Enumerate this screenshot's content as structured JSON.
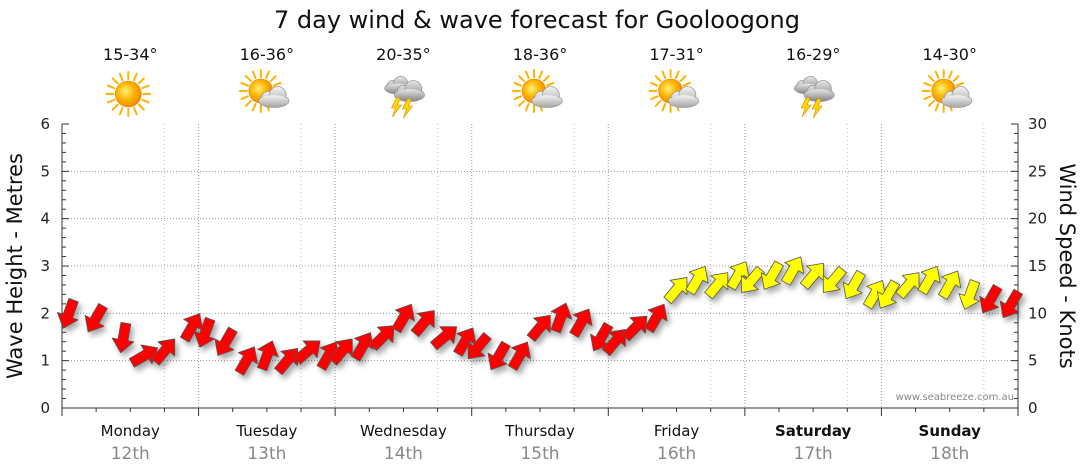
{
  "chart_data": {
    "type": "line",
    "title": "7 day wind & wave forecast for Gooloogong",
    "ylabel": "Wave Height - Metres",
    "y2label": "Wind Speed - Knots",
    "ylim": [
      0,
      6
    ],
    "y2lim": [
      0,
      30
    ],
    "yticks": [
      "0",
      "1",
      "2",
      "3",
      "4",
      "5",
      "6"
    ],
    "y2ticks": [
      "0",
      "5",
      "10",
      "15",
      "20",
      "25",
      "30"
    ],
    "grid": true,
    "days": [
      {
        "day": "Monday",
        "date": "12th",
        "temp": "15-34°",
        "icon": "sunny-icon",
        "bold": false
      },
      {
        "day": "Tuesday",
        "date": "13th",
        "temp": "16-36°",
        "icon": "partly-cloudy-icon",
        "bold": false
      },
      {
        "day": "Wednesday",
        "date": "14th",
        "temp": "20-35°",
        "icon": "thunderstorm-icon",
        "bold": false
      },
      {
        "day": "Thursday",
        "date": "15th",
        "temp": "18-36°",
        "icon": "partly-cloudy-icon",
        "bold": false
      },
      {
        "day": "Friday",
        "date": "16th",
        "temp": "17-31°",
        "icon": "partly-cloudy-icon",
        "bold": false
      },
      {
        "day": "Saturday",
        "date": "17th",
        "temp": "16-29°",
        "icon": "thunderstorm-icon",
        "bold": true
      },
      {
        "day": "Sunday",
        "date": "18th",
        "temp": "14-30°",
        "icon": "partly-cloudy-icon",
        "bold": true
      }
    ],
    "series": [
      {
        "kind": "wind-arrows",
        "unit": "knots",
        "colors": {
          "low": "#ff0000",
          "high": "#ffff00"
        },
        "x_days": [
          0.0,
          0.2,
          0.4,
          0.55,
          0.7,
          0.9,
          1.0,
          1.15,
          1.3,
          1.45,
          1.6,
          1.75,
          1.9,
          2.0,
          2.15,
          2.3,
          2.45,
          2.6,
          2.75,
          2.9,
          3.0,
          3.15,
          3.3,
          3.45,
          3.6,
          3.75,
          3.9,
          4.0,
          4.15,
          4.3,
          4.45,
          4.6,
          4.75,
          4.9,
          5.0,
          5.15,
          5.3,
          5.45,
          5.6,
          5.75,
          5.9,
          6.0,
          6.15,
          6.3,
          6.45,
          6.6,
          6.75,
          6.9
        ],
        "values": [
          10.0,
          9.5,
          7.5,
          5.5,
          6.0,
          8.5,
          8.0,
          7.0,
          5.0,
          5.5,
          5.0,
          6.0,
          5.5,
          6.0,
          6.5,
          7.5,
          9.5,
          9.0,
          7.5,
          7.0,
          6.5,
          5.5,
          5.5,
          8.5,
          9.5,
          9.0,
          7.5,
          7.0,
          8.5,
          9.5,
          12.5,
          13.5,
          13.0,
          14.0,
          13.5,
          14.0,
          14.5,
          14.0,
          13.5,
          13.0,
          12.0,
          12.0,
          13.0,
          13.5,
          13.0,
          12.0,
          11.5,
          11.0
        ],
        "directions_deg": [
          200,
          210,
          190,
          60,
          40,
          30,
          200,
          210,
          30,
          20,
          40,
          50,
          30,
          40,
          30,
          45,
          30,
          40,
          50,
          30,
          220,
          210,
          30,
          40,
          20,
          30,
          210,
          40,
          45,
          30,
          40,
          30,
          40,
          30,
          220,
          210,
          30,
          40,
          220,
          210,
          30,
          210,
          40,
          30,
          30,
          200,
          210,
          210
        ]
      }
    ],
    "credit": "www.seabreeze.com.au"
  }
}
